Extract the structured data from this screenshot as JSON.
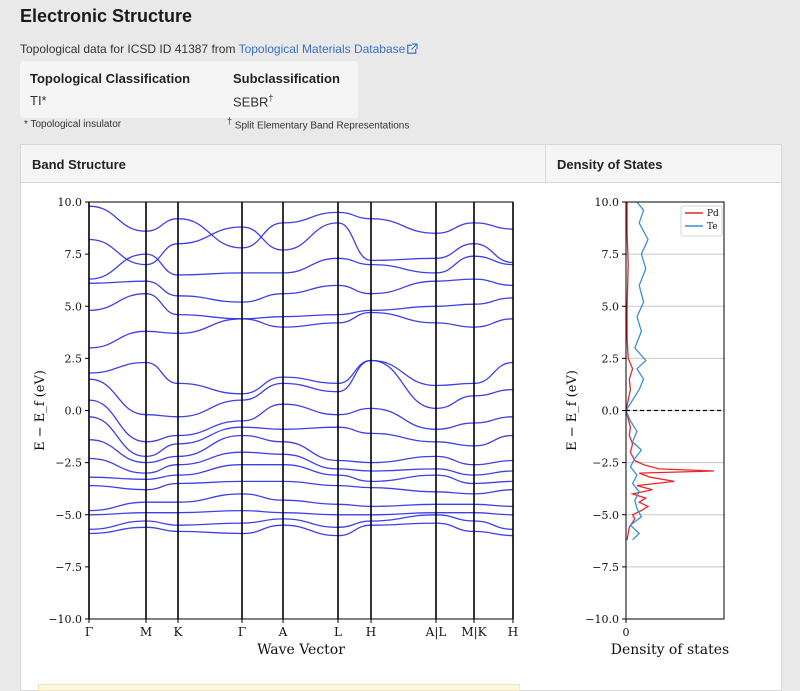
{
  "page": {
    "title": "Electronic Structure",
    "source_prefix": "Topological data for ICSD ID 41387 from ",
    "source_link": "Topological Materials Database"
  },
  "topology": {
    "classification_header": "Topological Classification",
    "classification_value": "TI*",
    "subclass_header": "Subclassification",
    "subclass_value": "SEBR",
    "subclass_mark": "†",
    "footnote_ti": "* Topological insulator",
    "footnote_mark": "†",
    "footnote_sebr": " Split Elementary Band Representations"
  },
  "panel": {
    "band_header": "Band Structure",
    "dos_header": "Density of States"
  },
  "colors": {
    "band": "#2a2ae6",
    "pd": "#e8262b",
    "te": "#3d8ed3",
    "link": "#3b6fcc"
  },
  "chart_data": [
    {
      "type": "line",
      "title": "Band Structure",
      "xlabel": "Wave Vector",
      "ylabel": "E − E_f (eV)",
      "ylim": [
        -10,
        10
      ],
      "yticks": [
        "10.0",
        "7.5",
        "5.0",
        "2.5",
        "0.0",
        "−2.5",
        "−5.0",
        "−7.5",
        "−10.0"
      ],
      "kpoints": [
        "Γ",
        "M",
        "K",
        "Γ",
        "A",
        "L",
        "H",
        "A|L",
        "M|K",
        "H"
      ],
      "series": [
        {
          "values": [
            9.8,
            8.6,
            9.2,
            7.8,
            9.0,
            9.5,
            9.2,
            8.5,
            9.0,
            8.7
          ]
        },
        {
          "values": [
            8.2,
            7.0,
            8.0,
            8.8,
            7.7,
            9.0,
            7.2,
            7.3,
            8.0,
            7.1
          ]
        },
        {
          "values": [
            6.3,
            7.5,
            6.5,
            6.6,
            6.6,
            7.3,
            7.0,
            6.6,
            7.4,
            7.0
          ]
        },
        {
          "values": [
            6.1,
            6.2,
            5.5,
            5.2,
            5.6,
            6.0,
            5.6,
            6.2,
            6.3,
            6.0
          ]
        },
        {
          "values": [
            4.8,
            5.6,
            4.6,
            4.4,
            4.5,
            4.6,
            4.8,
            5.0,
            5.1,
            5.4
          ]
        },
        {
          "values": [
            3.0,
            3.8,
            3.7,
            4.4,
            4.0,
            4.2,
            4.7,
            4.2,
            4.0,
            4.4
          ]
        },
        {
          "values": [
            1.8,
            2.3,
            1.3,
            0.8,
            1.6,
            1.3,
            2.4,
            1.2,
            1.3,
            2.3
          ]
        },
        {
          "values": [
            1.5,
            -0.2,
            -0.3,
            0.5,
            1.3,
            0.9,
            2.4,
            0.1,
            0.7,
            1.0
          ]
        },
        {
          "values": [
            0.5,
            -1.5,
            -1.2,
            -0.5,
            0.3,
            -0.2,
            0.1,
            -0.9,
            -0.6,
            -0.3
          ]
        },
        {
          "values": [
            -0.3,
            -2.2,
            -1.6,
            -0.8,
            -0.9,
            -0.8,
            -1.1,
            -1.5,
            -1.7,
            -1.2
          ]
        },
        {
          "values": [
            -1.4,
            -2.5,
            -2.2,
            -1.2,
            -1.5,
            -2.4,
            -2.5,
            -2.2,
            -2.6,
            -2.4
          ]
        },
        {
          "values": [
            -2.3,
            -3.0,
            -2.6,
            -2.0,
            -2.1,
            -2.8,
            -2.9,
            -2.8,
            -3.1,
            -2.9
          ]
        },
        {
          "values": [
            -3.2,
            -3.3,
            -3.1,
            -2.6,
            -2.6,
            -3.1,
            -3.4,
            -3.1,
            -3.5,
            -3.4
          ]
        },
        {
          "values": [
            -3.6,
            -3.8,
            -3.5,
            -3.4,
            -3.4,
            -3.6,
            -3.7,
            -3.9,
            -4.0,
            -3.8
          ]
        },
        {
          "values": [
            -4.8,
            -4.4,
            -4.4,
            -4.0,
            -4.3,
            -4.5,
            -4.6,
            -4.5,
            -4.5,
            -4.6
          ]
        },
        {
          "values": [
            -5.0,
            -4.9,
            -4.9,
            -4.8,
            -4.9,
            -5.0,
            -5.0,
            -4.9,
            -4.9,
            -5.0
          ]
        },
        {
          "values": [
            -5.7,
            -5.3,
            -5.5,
            -5.4,
            -5.2,
            -5.6,
            -5.3,
            -5.0,
            -5.3,
            -5.7
          ]
        },
        {
          "values": [
            -5.9,
            -5.6,
            -5.8,
            -5.9,
            -5.5,
            -6.0,
            -5.5,
            -5.4,
            -5.8,
            -6.0
          ]
        }
      ]
    },
    {
      "type": "line",
      "title": "Density of States",
      "xlabel": "Density of states",
      "ylabel": "E − E_f (eV)",
      "ylim": [
        -10,
        10
      ],
      "yticks": [
        "10.0",
        "7.5",
        "5.0",
        "2.5",
        "0.0",
        "−2.5",
        "−5.0",
        "−7.5",
        "−10.0"
      ],
      "xticks": [
        "0"
      ],
      "legend_position": "top-right",
      "fermi_line": 0.0,
      "series": [
        {
          "name": "Pd",
          "y": [
            -6.2,
            -5.9,
            -5.6,
            -5.2,
            -5.0,
            -4.8,
            -4.6,
            -4.4,
            -4.2,
            -4.0,
            -3.8,
            -3.6,
            -3.4,
            -3.2,
            -3.0,
            -2.9,
            -2.8,
            -2.6,
            -2.4,
            -2.2,
            -2.0,
            -1.6,
            -1.2,
            -0.8,
            -0.4,
            0.0,
            0.5,
            1.0,
            1.5,
            2.0,
            2.5,
            3.5,
            5.0,
            7.0,
            8.5,
            10.0
          ],
          "values": [
            0.05,
            0.1,
            0.15,
            0.4,
            0.3,
            0.7,
            1.0,
            0.6,
            0.9,
            0.3,
            1.2,
            0.5,
            2.2,
            1.1,
            0.6,
            4.0,
            1.5,
            0.8,
            0.4,
            0.3,
            0.2,
            0.3,
            0.15,
            0.2,
            0.1,
            0.0,
            0.1,
            0.2,
            0.15,
            0.3,
            0.1,
            0.05,
            0.05,
            0.1,
            0.05,
            0.05
          ]
        },
        {
          "name": "Te",
          "y": [
            -6.2,
            -5.9,
            -5.5,
            -5.1,
            -4.7,
            -4.3,
            -3.9,
            -3.5,
            -3.1,
            -2.7,
            -2.3,
            -1.9,
            -1.5,
            -1.0,
            -0.5,
            0.0,
            0.5,
            1.0,
            1.5,
            2.0,
            2.4,
            3.0,
            3.8,
            4.5,
            5.2,
            6.0,
            6.8,
            7.5,
            8.2,
            9.0,
            9.6,
            10.0
          ],
          "values": [
            0.3,
            0.6,
            0.2,
            0.7,
            0.5,
            0.4,
            0.6,
            0.3,
            0.5,
            0.2,
            0.4,
            0.7,
            0.3,
            0.5,
            0.2,
            0.0,
            0.3,
            0.6,
            0.8,
            0.5,
            0.9,
            0.4,
            0.7,
            0.5,
            0.8,
            0.6,
            0.9,
            0.7,
            1.0,
            0.6,
            0.8,
            0.5
          ]
        }
      ]
    }
  ]
}
